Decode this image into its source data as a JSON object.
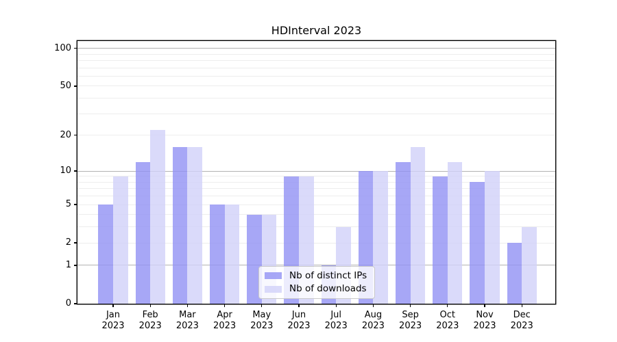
{
  "title": "HDInterval 2023",
  "chart_data": {
    "type": "bar",
    "title": "HDInterval 2023",
    "categories": [
      "Jan",
      "Feb",
      "Mar",
      "Apr",
      "May",
      "Jun",
      "Jul",
      "Aug",
      "Sep",
      "Oct",
      "Nov",
      "Dec"
    ],
    "x_tick_year": "2023",
    "series": [
      {
        "name": "Nb of distinct IPs",
        "color": "#9191f4",
        "alpha": 0.8,
        "values": [
          5,
          12,
          16,
          5,
          4,
          9,
          1,
          10,
          12,
          9,
          8,
          2
        ]
      },
      {
        "name": "Nb of downloads",
        "color": "#d1d1f9",
        "alpha": 0.8,
        "values": [
          9,
          22,
          16,
          5,
          4,
          9,
          3,
          10,
          16,
          12,
          10,
          3
        ]
      }
    ],
    "yscale": "log1p",
    "ylim": [
      0,
      114
    ],
    "yticks": [
      0,
      1,
      2,
      5,
      10,
      20,
      50,
      100
    ],
    "major_gridlines": [
      1,
      10,
      100
    ],
    "minor_gridlines": [
      2,
      3,
      4,
      5,
      6,
      7,
      8,
      9,
      20,
      30,
      40,
      50,
      60,
      70,
      80,
      90
    ],
    "grid": true,
    "legend_position": "lower center"
  },
  "colors": {
    "grid_major": "#b2b2b2",
    "grid_minor": "#ededed",
    "axis": "#000000",
    "background": "#ffffff"
  }
}
